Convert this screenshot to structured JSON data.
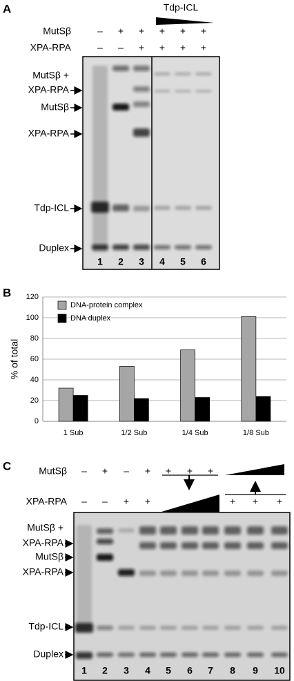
{
  "panel_a": {
    "label": "A",
    "wedge_label": "Tdp-ICL",
    "rows": [
      {
        "name": "MutSβ",
        "signs": [
          "–",
          "+",
          "+",
          "+",
          "+",
          "+"
        ]
      },
      {
        "name": "XPA-RPA",
        "signs": [
          "–",
          "–",
          "+",
          "+",
          "+",
          "+"
        ]
      }
    ],
    "band_labels": [
      "MutSβ +",
      "XPA-RPA",
      "MutSβ",
      "XPA-RPA",
      "Tdp-ICL",
      "Duplex"
    ],
    "lanes": [
      "1",
      "2",
      "3",
      "4",
      "5",
      "6"
    ]
  },
  "chart_data": {
    "type": "bar",
    "panel_label": "B",
    "y_label": "% of total",
    "categories": [
      "1 Sub",
      "1/2 Sub",
      "1/4 Sub",
      "1/8 Sub"
    ],
    "series": [
      {
        "name": "DNA-protein complex",
        "color": "#a6a6a6",
        "values": [
          32,
          53,
          69,
          101
        ]
      },
      {
        "name": "DNA duplex",
        "color": "#000000",
        "values": [
          25,
          22,
          23,
          24
        ]
      }
    ],
    "ylim": [
      0,
      120
    ],
    "yticks": [
      0,
      20,
      40,
      60,
      80,
      100,
      120
    ],
    "grid": true,
    "legend": "top-left"
  },
  "panel_c": {
    "label": "C",
    "rows": [
      {
        "name": "MutSβ",
        "signs": [
          "–",
          "+",
          "–",
          "+",
          "+",
          "+",
          "+",
          null,
          null,
          null
        ]
      },
      {
        "name": "XPA-RPA",
        "signs": [
          "–",
          "–",
          "+",
          "+",
          null,
          null,
          null,
          "+",
          "+",
          "+"
        ]
      }
    ],
    "band_labels": [
      "MutSβ +",
      "XPA-RPA",
      "MutSβ",
      "XPA-RPA",
      "Tdp-ICL",
      "Duplex"
    ],
    "lanes": [
      "1",
      "2",
      "3",
      "4",
      "5",
      "6",
      "7",
      "8",
      "9",
      "10"
    ]
  }
}
